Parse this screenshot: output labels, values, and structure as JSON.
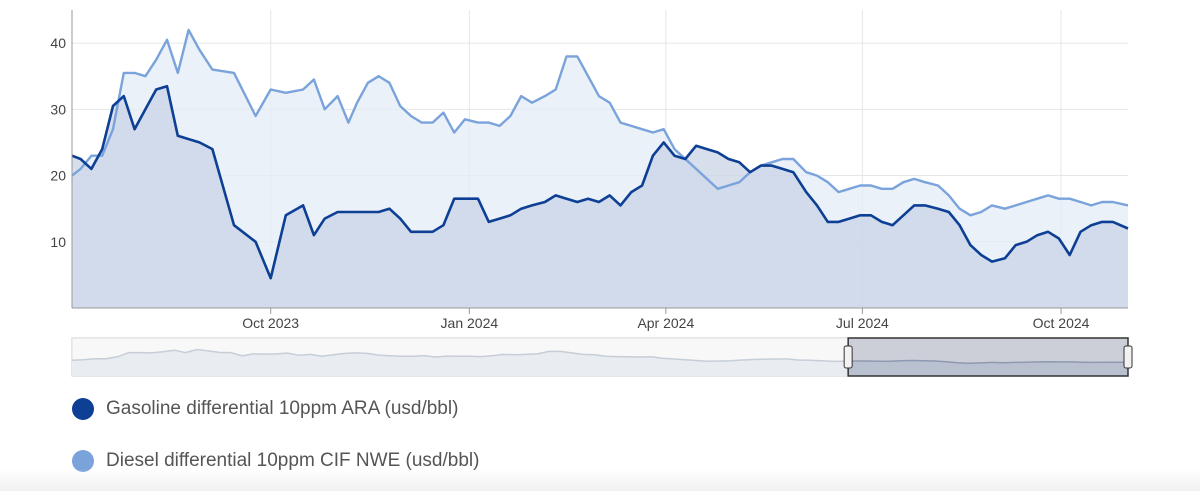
{
  "chart_data": {
    "type": "area",
    "title": "",
    "xlabel": "",
    "ylabel": "",
    "x_ticks": [
      "Oct 2023",
      "Jan 2024",
      "Apr 2024",
      "Jul 2024",
      "Oct 2024"
    ],
    "y_ticks": [
      10,
      20,
      30,
      40
    ],
    "ylim": [
      0,
      45
    ],
    "xlim": [
      "2023-07-01",
      "2024-11-01"
    ],
    "grid": true,
    "legend_position": "bottom-left",
    "series": [
      {
        "name": "Gasoline differential 10ppm ARA (usd/bbl)",
        "color": "#0d3f94",
        "x": [
          "2023-07-01",
          "2023-07-05",
          "2023-07-10",
          "2023-07-15",
          "2023-07-20",
          "2023-07-25",
          "2023-07-30",
          "2023-08-04",
          "2023-08-09",
          "2023-08-14",
          "2023-08-19",
          "2023-08-24",
          "2023-08-29",
          "2023-09-04",
          "2023-09-14",
          "2023-09-24",
          "2023-10-01",
          "2023-10-08",
          "2023-10-16",
          "2023-10-21",
          "2023-10-26",
          "2023-11-01",
          "2023-11-06",
          "2023-11-10",
          "2023-11-15",
          "2023-11-20",
          "2023-11-25",
          "2023-11-30",
          "2023-12-05",
          "2023-12-10",
          "2023-12-15",
          "2023-12-20",
          "2023-12-25",
          "2023-12-30",
          "2024-01-05",
          "2024-01-10",
          "2024-01-15",
          "2024-01-20",
          "2024-01-25",
          "2024-01-30",
          "2024-02-05",
          "2024-02-10",
          "2024-02-15",
          "2024-02-20",
          "2024-02-25",
          "2024-03-01",
          "2024-03-06",
          "2024-03-11",
          "2024-03-16",
          "2024-03-21",
          "2024-03-26",
          "2024-03-31",
          "2024-04-05",
          "2024-04-10",
          "2024-04-15",
          "2024-04-20",
          "2024-04-25",
          "2024-04-30",
          "2024-05-05",
          "2024-05-10",
          "2024-05-15",
          "2024-05-20",
          "2024-05-25",
          "2024-05-30",
          "2024-06-05",
          "2024-06-10",
          "2024-06-15",
          "2024-06-20",
          "2024-06-25",
          "2024-06-30",
          "2024-07-05",
          "2024-07-10",
          "2024-07-15",
          "2024-07-20",
          "2024-07-25",
          "2024-07-30",
          "2024-08-05",
          "2024-08-10",
          "2024-08-15",
          "2024-08-20",
          "2024-08-25",
          "2024-08-30",
          "2024-09-05",
          "2024-09-10",
          "2024-09-15",
          "2024-09-20",
          "2024-09-25",
          "2024-09-30",
          "2024-10-05",
          "2024-10-10",
          "2024-10-15",
          "2024-10-20",
          "2024-10-25",
          "2024-11-01"
        ],
        "y": [
          23,
          22.5,
          21,
          24,
          30.5,
          32,
          27,
          30,
          33,
          33.5,
          26,
          25.5,
          25,
          24,
          12.5,
          10,
          4.5,
          14,
          15.5,
          11,
          13.5,
          14.5,
          14.5,
          14.5,
          14.5,
          14.5,
          15,
          13.5,
          11.5,
          11.5,
          11.5,
          12.5,
          16.5,
          16.5,
          16.5,
          13,
          13.5,
          14,
          15,
          15.5,
          16,
          17,
          16.5,
          16,
          16.5,
          16,
          17,
          15.5,
          17.5,
          18.5,
          23,
          25,
          23,
          22.5,
          24.5,
          24,
          23.5,
          22.5,
          22,
          20.5,
          21.5,
          21.5,
          21,
          20.5,
          17.5,
          15.5,
          13,
          13,
          13.5,
          14,
          14,
          13,
          12.5,
          14,
          15.5,
          15.5,
          15,
          14.5,
          12.5,
          9.5,
          8,
          7,
          7.5,
          9.5,
          10,
          11,
          11.5,
          10.5,
          8,
          11.5,
          12.5,
          13,
          13,
          12
        ]
      },
      {
        "name": "Diesel differential 10ppm CIF NWE (usd/bbl)",
        "color": "#7aa3dc",
        "x": [
          "2023-07-01",
          "2023-07-05",
          "2023-07-10",
          "2023-07-15",
          "2023-07-20",
          "2023-07-25",
          "2023-07-30",
          "2023-08-04",
          "2023-08-09",
          "2023-08-14",
          "2023-08-19",
          "2023-08-24",
          "2023-08-29",
          "2023-09-04",
          "2023-09-14",
          "2023-09-24",
          "2023-10-01",
          "2023-10-08",
          "2023-10-16",
          "2023-10-21",
          "2023-10-26",
          "2023-11-01",
          "2023-11-06",
          "2023-11-10",
          "2023-11-15",
          "2023-11-20",
          "2023-11-25",
          "2023-11-30",
          "2023-12-05",
          "2023-12-10",
          "2023-12-15",
          "2023-12-20",
          "2023-12-25",
          "2023-12-30",
          "2024-01-05",
          "2024-01-10",
          "2024-01-15",
          "2024-01-20",
          "2024-01-25",
          "2024-01-30",
          "2024-02-05",
          "2024-02-10",
          "2024-02-15",
          "2024-02-20",
          "2024-02-25",
          "2024-03-01",
          "2024-03-06",
          "2024-03-11",
          "2024-03-16",
          "2024-03-21",
          "2024-03-26",
          "2024-03-31",
          "2024-04-05",
          "2024-04-10",
          "2024-04-15",
          "2024-04-20",
          "2024-04-25",
          "2024-04-30",
          "2024-05-05",
          "2024-05-10",
          "2024-05-15",
          "2024-05-20",
          "2024-05-25",
          "2024-05-30",
          "2024-06-05",
          "2024-06-10",
          "2024-06-15",
          "2024-06-20",
          "2024-06-25",
          "2024-06-30",
          "2024-07-05",
          "2024-07-10",
          "2024-07-15",
          "2024-07-20",
          "2024-07-25",
          "2024-07-30",
          "2024-08-05",
          "2024-08-10",
          "2024-08-15",
          "2024-08-20",
          "2024-08-25",
          "2024-08-30",
          "2024-09-05",
          "2024-09-10",
          "2024-09-15",
          "2024-09-20",
          "2024-09-25",
          "2024-09-30",
          "2024-10-05",
          "2024-10-10",
          "2024-10-15",
          "2024-10-20",
          "2024-10-25",
          "2024-11-01"
        ],
        "y": [
          20,
          21,
          23,
          23,
          27,
          35.5,
          35.5,
          35,
          37.5,
          40.5,
          35.5,
          42,
          39,
          36,
          35.5,
          29,
          33,
          32.5,
          33,
          34.5,
          30,
          32,
          28,
          31,
          34,
          35,
          34,
          30.5,
          29,
          28,
          28,
          29.5,
          26.5,
          28.5,
          28,
          28,
          27.5,
          29,
          32,
          31,
          32,
          33,
          38,
          38,
          35,
          32,
          31,
          28,
          27.5,
          27,
          26.5,
          27,
          24,
          22.5,
          21,
          19.5,
          18,
          18.5,
          19,
          20.5,
          21.5,
          22,
          22.5,
          22.5,
          20.5,
          20,
          19,
          17.5,
          18,
          18.5,
          18.5,
          18,
          18,
          19,
          19.5,
          19,
          18.5,
          17,
          15,
          14,
          14.5,
          15.5,
          15,
          15.5,
          16,
          16.5,
          17,
          16.5,
          16.5,
          16,
          15.5,
          16,
          16,
          15.5
        ]
      }
    ]
  },
  "navigator": {
    "range_start_fraction": 0.735,
    "range_end_fraction": 1.0,
    "line_color": "#a9b4c4"
  },
  "legend": {
    "items": [
      {
        "label": "Gasoline differential 10ppm ARA (usd/bbl)",
        "color": "#0d3f94"
      },
      {
        "label": "Diesel differential 10ppm CIF NWE (usd/bbl)",
        "color": "#7aa3dc"
      }
    ]
  },
  "colors": {
    "gasoline_fill": "#c9d3e6",
    "diesel_fill": "#e3ecf7",
    "grid": "#e6e6e6",
    "axis": "#999999",
    "tick_label": "#444444"
  }
}
